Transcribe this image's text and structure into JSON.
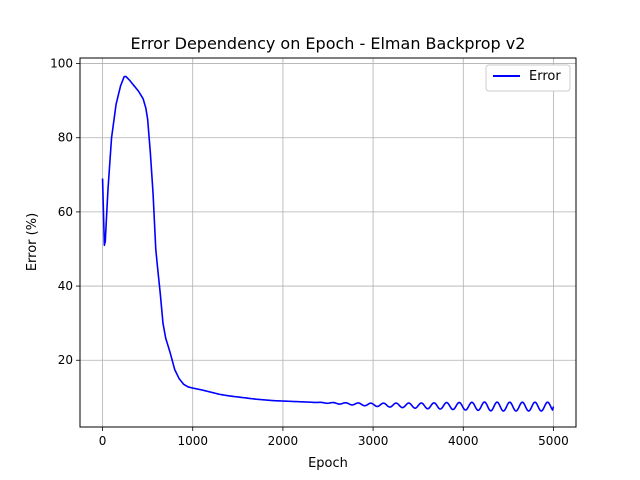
{
  "chart_data": {
    "type": "line",
    "title": "Error Dependency on Epoch - Elman Backprop v2",
    "xlabel": "Epoch",
    "ylabel": "Error (%)",
    "xlim": [
      -250,
      5250
    ],
    "ylim": [
      2,
      101.5
    ],
    "xticks": [
      0,
      1000,
      2000,
      3000,
      4000,
      5000
    ],
    "yticks": [
      20,
      40,
      60,
      80,
      100
    ],
    "grid": true,
    "legend_position": "top-right",
    "series": [
      {
        "name": "Error",
        "color": "#0000ff",
        "x": [
          0,
          10,
          20,
          30,
          60,
          100,
          150,
          200,
          240,
          260,
          300,
          350,
          400,
          450,
          480,
          500,
          530,
          560,
          590,
          610,
          640,
          670,
          700,
          750,
          800,
          850,
          900,
          950,
          1000,
          1100,
          1200,
          1300,
          1400,
          1500,
          1600,
          1700,
          1800,
          1900,
          2000,
          2200,
          2400,
          2600,
          2800,
          3000,
          3200,
          3400,
          3600,
          3800,
          4000,
          4200,
          4400,
          4600,
          4800,
          5000
        ],
        "y": [
          69,
          60,
          51,
          52,
          66,
          80,
          89,
          94,
          96.5,
          96.5,
          95.5,
          94,
          92.5,
          90.5,
          88,
          85,
          76,
          65,
          50,
          45,
          38,
          30,
          26,
          22,
          17.5,
          15,
          13.5,
          12.8,
          12.5,
          12,
          11.4,
          10.8,
          10.4,
          10.1,
          9.8,
          9.5,
          9.3,
          9.1,
          9.0,
          8.8,
          8.6,
          8.4,
          8.2,
          8.0,
          7.9,
          7.8,
          7.7,
          7.7,
          7.6,
          7.6,
          7.5,
          7.5,
          7.5,
          7.5
        ]
      }
    ]
  }
}
